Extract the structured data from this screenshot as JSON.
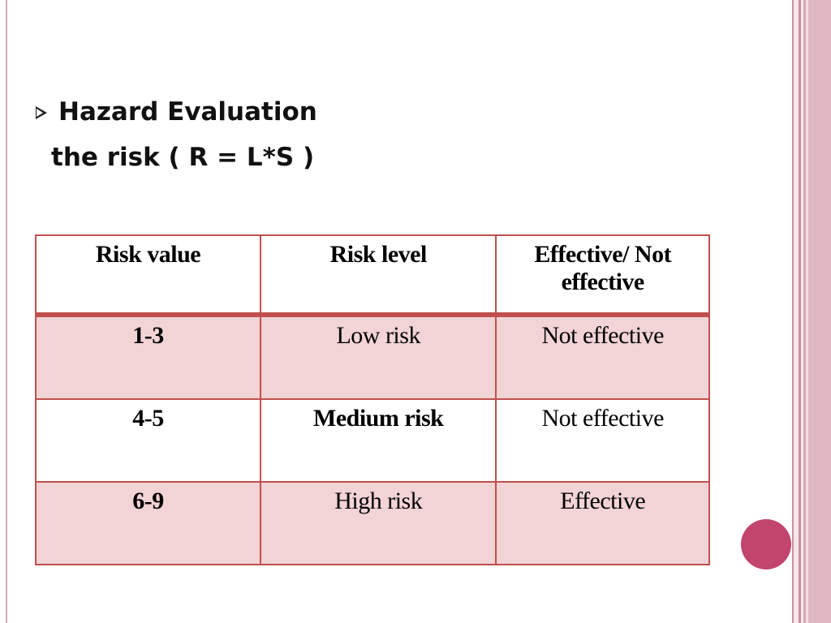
{
  "heading": {
    "title": "Hazard Evaluation",
    "formula": "the risk ( R = L*S )"
  },
  "table": {
    "headers": [
      "Risk value",
      "Risk level",
      "Effective/ Not effective"
    ],
    "rows": [
      {
        "value": "1-3",
        "level": "Low risk",
        "effective": "Not effective"
      },
      {
        "value": "4-5",
        "level": "Medium risk",
        "effective": "Not effective"
      },
      {
        "value": "6-9",
        "level": "High risk",
        "effective": "Effective"
      }
    ]
  },
  "colors": {
    "table_border": "#c0504d",
    "row_band": "#f2d3d6",
    "accent_circle": "#c2456e",
    "side_stripes": "#e0b8c2"
  },
  "icons": {
    "bullet": "arrowhead-bullet-icon"
  }
}
